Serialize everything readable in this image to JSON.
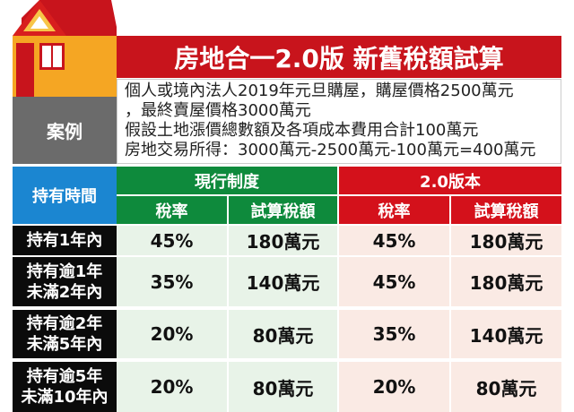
{
  "title": "房地合一2.0版 新舊稅額試算",
  "case": {
    "label": "案例",
    "lines": [
      "個人或境內法人2019年元旦購屋，購屋價格2500萬元",
      "，最終賣屋價格3000萬元",
      "假設土地漲價總數額及各項成本費用合計100萬元",
      "房地交易所得：3000萬元-2500萬元-100萬元=400萬元"
    ]
  },
  "table": {
    "holding_header": "持有時間",
    "groups": [
      {
        "label": "現行制度",
        "color": "#0e8a3c",
        "cols": [
          "稅率",
          "試算稅額"
        ]
      },
      {
        "label": "2.0版本",
        "color": "#d4111b",
        "cols": [
          "稅率",
          "試算稅額"
        ]
      }
    ],
    "rows": [
      {
        "period": [
          "持有1年內"
        ],
        "current_rate": "45%",
        "current_tax": "180萬元",
        "new_rate": "45%",
        "new_tax": "180萬元"
      },
      {
        "period": [
          "持有逾1年",
          "未滿2年內"
        ],
        "current_rate": "35%",
        "current_tax": "140萬元",
        "new_rate": "45%",
        "new_tax": "180萬元"
      },
      {
        "period": [
          "持有逾2年",
          "未滿5年內"
        ],
        "current_rate": "20%",
        "current_tax": "80萬元",
        "new_rate": "35%",
        "new_tax": "140萬元"
      },
      {
        "period": [
          "持有逾5年",
          "未滿10年內"
        ],
        "current_rate": "20%",
        "current_tax": "80萬元",
        "new_rate": "20%",
        "new_tax": "80萬元"
      }
    ]
  }
}
